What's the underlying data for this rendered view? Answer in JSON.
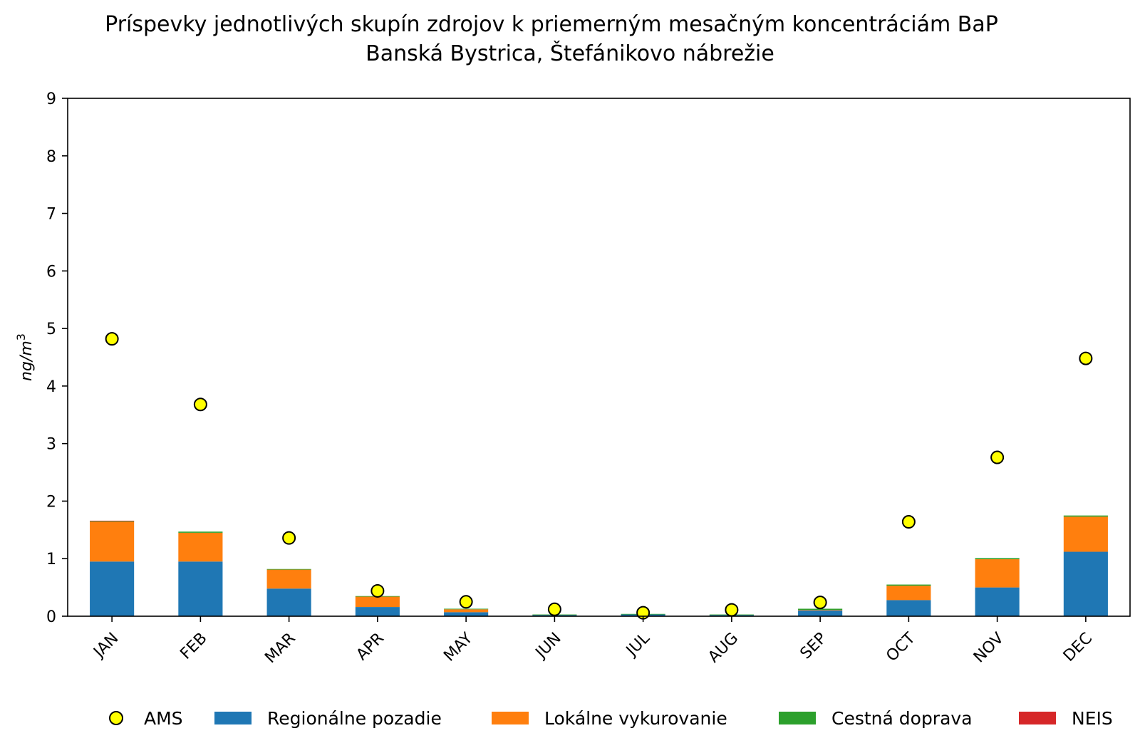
{
  "chart_data": {
    "type": "bar",
    "title": "Príspevky jednotlivých skupín zdrojov k priemerným mesačným koncentráciám BaP",
    "subtitle": "Banská Bystrica, Štefánikovo nábrežie",
    "xlabel": "",
    "ylabel": "ng/m",
    "ylabel_superscript": "3",
    "ylim": [
      0,
      9
    ],
    "yticks": [
      "0",
      "1",
      "2",
      "3",
      "4",
      "5",
      "6",
      "7",
      "8",
      "9"
    ],
    "categories": [
      "JAN",
      "FEB",
      "MAR",
      "APR",
      "MAY",
      "JUN",
      "JUL",
      "AUG",
      "SEP",
      "OCT",
      "NOV",
      "DEC"
    ],
    "stacked": true,
    "series": [
      {
        "name": "Regionálne pozadie",
        "color": "#1f77b4",
        "values": [
          0.95,
          0.95,
          0.48,
          0.16,
          0.07,
          0.02,
          0.03,
          0.02,
          0.1,
          0.28,
          0.5,
          1.12
        ]
      },
      {
        "name": "Lokálne vykurovanie",
        "color": "#ff7f0e",
        "values": [
          0.69,
          0.5,
          0.33,
          0.18,
          0.05,
          0.0,
          0.0,
          0.0,
          0.01,
          0.25,
          0.49,
          0.61
        ]
      },
      {
        "name": "Cestná doprava",
        "color": "#2ca02c",
        "values": [
          0.01,
          0.02,
          0.01,
          0.01,
          0.01,
          0.01,
          0.01,
          0.01,
          0.02,
          0.02,
          0.02,
          0.02
        ]
      },
      {
        "name": "NEIS",
        "color": "#d62728",
        "values": [
          0.01,
          0.0,
          0.0,
          0.0,
          0.0,
          0.0,
          0.0,
          0.0,
          0.0,
          0.0,
          0.0,
          0.0
        ]
      }
    ],
    "markers": {
      "name": "AMS",
      "color": "#ffff00",
      "values": [
        4.82,
        3.68,
        1.36,
        0.44,
        0.25,
        0.12,
        0.06,
        0.11,
        0.24,
        1.64,
        2.76,
        4.48
      ]
    },
    "legend_position": "bottom",
    "legend_order": [
      "AMS",
      "Regionálne pozadie",
      "Lokálne vykurovanie",
      "Cestná doprava",
      "NEIS"
    ]
  }
}
